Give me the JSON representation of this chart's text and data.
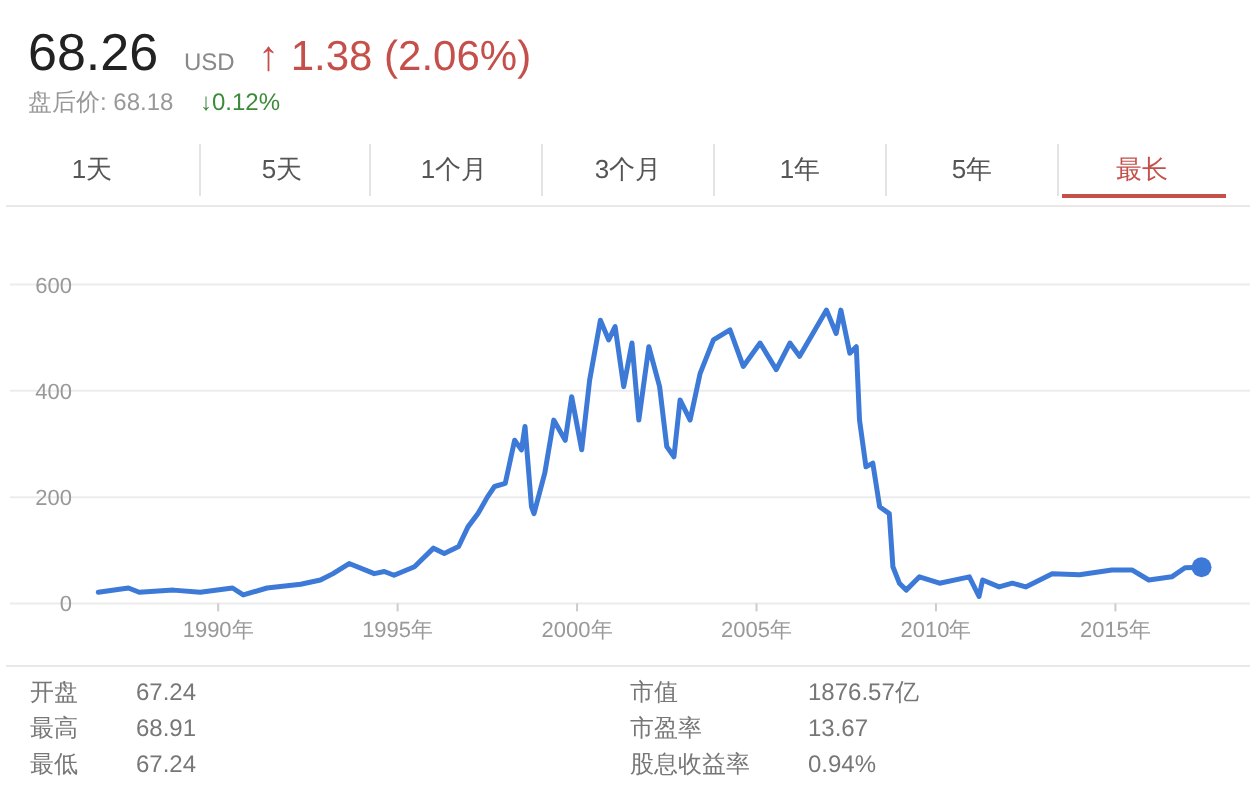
{
  "chart_data": {
    "type": "line",
    "xlim": [
      1984.2,
      2018.75
    ],
    "ylim": [
      0,
      600
    ],
    "xticks": [
      {
        "value": 1990,
        "label": "1990年"
      },
      {
        "value": 1995,
        "label": "1995年"
      },
      {
        "value": 2000,
        "label": "2000年"
      },
      {
        "value": 2005,
        "label": "2005年"
      },
      {
        "value": 2010,
        "label": "2010年"
      },
      {
        "value": 2015,
        "label": "2015年"
      }
    ],
    "yticks": [
      0,
      200,
      400,
      600
    ],
    "grid": "y",
    "series": [
      {
        "color": "#3d7ad8",
        "line_style": "solid",
        "marker": "none",
        "x": [
          1986.66,
          1987.5,
          1987.8,
          1988.75,
          1989.5,
          1990.4,
          1990.7,
          1991.36,
          1992.3,
          1992.85,
          1993.2,
          1993.65,
          1994.35,
          1994.63,
          1994.9,
          1995.47,
          1996.0,
          1996.3,
          1996.7,
          1996.96,
          1997.24,
          1997.5,
          1997.7,
          1998.0,
          1998.26,
          1998.45,
          1998.55,
          1998.73,
          1998.8,
          1999.1,
          1999.35,
          1999.67,
          1999.85,
          2000.13,
          2000.35,
          2000.65,
          2000.88,
          2001.06,
          2001.3,
          2001.53,
          2001.72,
          2002.0,
          2002.3,
          2002.5,
          2002.7,
          2002.87,
          2003.15,
          2003.43,
          2003.8,
          2004.26,
          2004.63,
          2005.1,
          2005.55,
          2005.93,
          2006.2,
          2006.57,
          2006.95,
          2007.22,
          2007.35,
          2007.6,
          2007.78,
          2007.87,
          2008.05,
          2008.24,
          2008.43,
          2008.7,
          2008.8,
          2008.98,
          2009.17,
          2009.54,
          2010.1,
          2010.93,
          2011.2,
          2011.3,
          2011.76,
          2012.13,
          2012.5,
          2013.24,
          2014.0,
          2014.9,
          2015.46,
          2015.93,
          2016.57,
          2016.94,
          2017.4
        ],
        "values": [
          21,
          29,
          21,
          25,
          21,
          29,
          16,
          29,
          36,
          44,
          56,
          75,
          56,
          60,
          53,
          69,
          104,
          94,
          107,
          144,
          169,
          200,
          220,
          226,
          307,
          289,
          333,
          182,
          169,
          245,
          345,
          307,
          389,
          289,
          420,
          533,
          496,
          521,
          408,
          490,
          345,
          483,
          408,
          295,
          276,
          383,
          345,
          433,
          496,
          515,
          446,
          490,
          440,
          490,
          465,
          508,
          552,
          508,
          552,
          471,
          483,
          345,
          257,
          264,
          182,
          169,
          69,
          38,
          25,
          50,
          38,
          50,
          13,
          44,
          31,
          38,
          31,
          56,
          54,
          63,
          63,
          44,
          50,
          67,
          68
        ]
      },
      {
        "type": "scatter",
        "color": "#3d7ad8",
        "marker": "circle",
        "x": [
          2017.4
        ],
        "values": [
          68
        ]
      }
    ],
    "annotations": [
      "68.26",
      "USD",
      "↑ 1.38 (2.06%)",
      "盘后价: 68.18",
      "↓0.12%",
      "1天",
      "5天",
      "1个月",
      "3个月",
      "1年",
      "5年",
      "最长",
      "开盘",
      "67.24",
      "最高",
      "68.91",
      "最低",
      "67.24",
      "市值",
      "1876.57亿",
      "市盈率",
      "13.67",
      "股息收益率",
      "0.94%"
    ]
  }
}
